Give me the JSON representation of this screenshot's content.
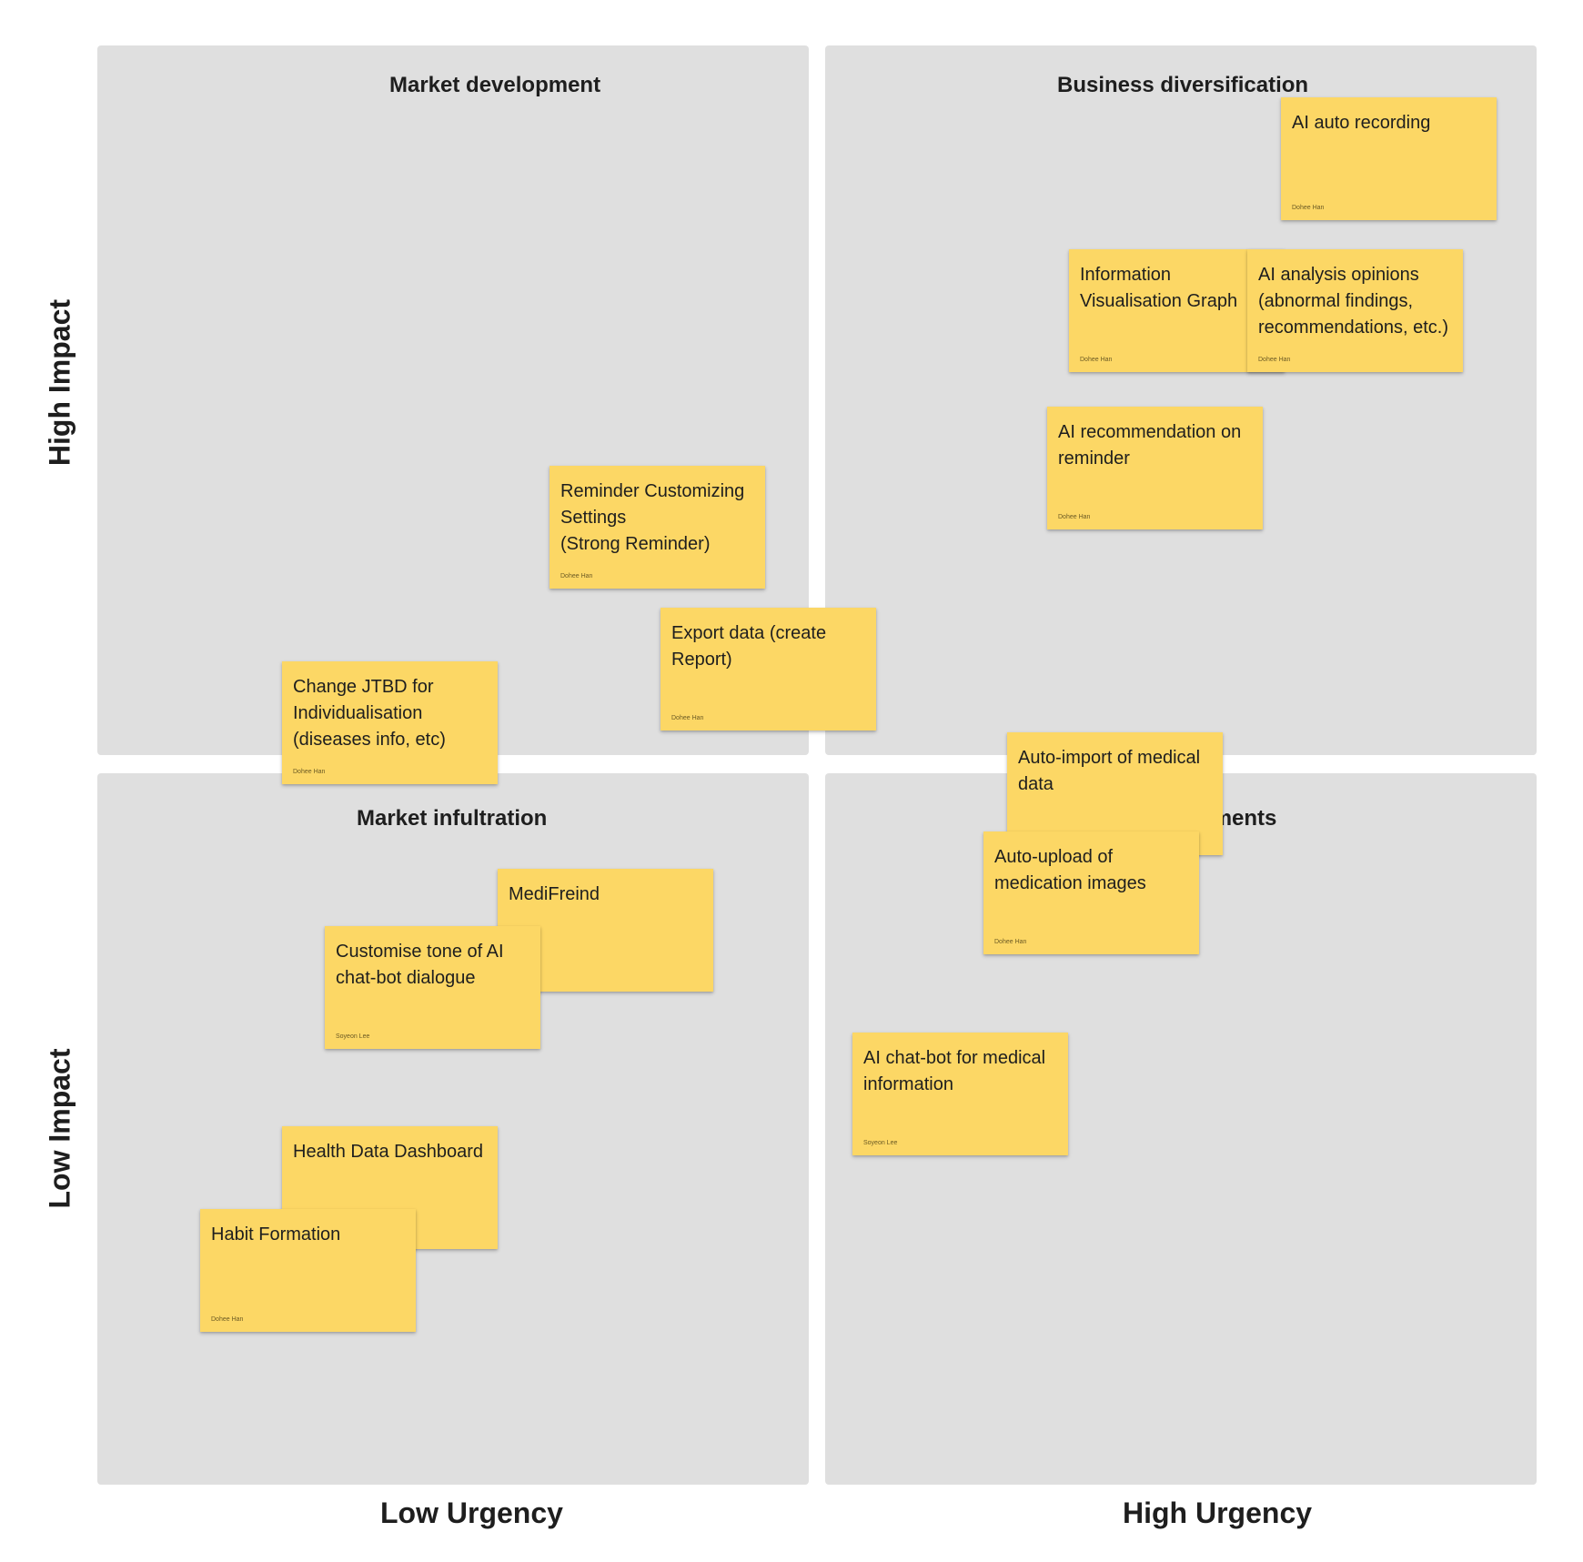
{
  "axes": {
    "y_top": "High Impact",
    "y_bottom": "Low Impact",
    "x_left": "Low Urgency",
    "x_right": "High Urgency"
  },
  "quadrants": {
    "top_left": "Market development",
    "top_right": "Business diversification",
    "bottom_left": "Market infultration",
    "bottom_right": "Product improvements"
  },
  "notes": {
    "ai_auto_recording": {
      "text": "AI auto recording",
      "author": "Dohee Han"
    },
    "info_vis_graph": {
      "text": "Information Visualisation Graph",
      "author": "Dohee Han"
    },
    "ai_analysis": {
      "text": "AI analysis opinions (abnormal findings, recommendations, etc.)",
      "author": "Dohee Han"
    },
    "ai_reco_reminder": {
      "text": "AI recommendation on reminder",
      "author": "Dohee Han"
    },
    "reminder_custom": {
      "text": "Reminder Customizing Settings\n(Strong Reminder)",
      "author": "Dohee Han"
    },
    "export_data": {
      "text": "Export data (create Report)",
      "author": "Dohee Han"
    },
    "change_jtbd": {
      "text": "Change JTBD for Individualisation (diseases info, etc)",
      "author": "Dohee Han"
    },
    "auto_import": {
      "text": "Auto-import of medical data",
      "author": ""
    },
    "auto_upload": {
      "text": "Auto-upload of medication images",
      "author": "Dohee Han"
    },
    "medifreind": {
      "text": "MediFreind",
      "author": ""
    },
    "customise_tone": {
      "text": "Customise tone of AI chat-bot dialogue",
      "author": "Soyeon Lee"
    },
    "ai_chatbot": {
      "text": "AI chat-bot for medical information",
      "author": "Soyeon Lee"
    },
    "health_dashboard": {
      "text": "Health Data Dashboard",
      "author": ""
    },
    "habit_formation": {
      "text": "Habit Formation",
      "author": "Dohee Han"
    }
  }
}
